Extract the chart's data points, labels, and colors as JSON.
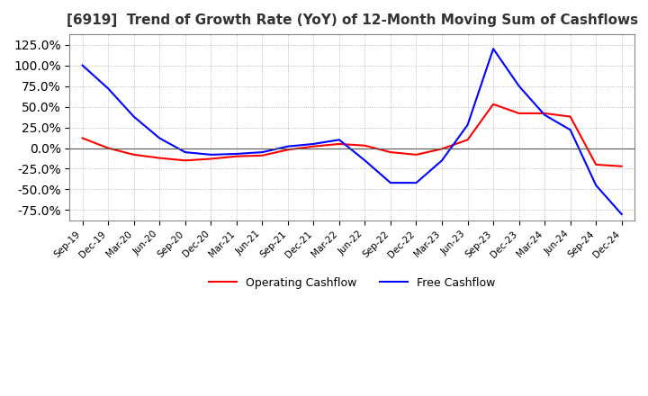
{
  "title": "[6919]  Trend of Growth Rate (YoY) of 12-Month Moving Sum of Cashflows",
  "title_fontsize": 11,
  "ylim": [
    -87.5,
    137.5
  ],
  "yticks": [
    -75,
    -50,
    -25,
    0,
    25,
    50,
    75,
    100,
    125
  ],
  "background_color": "#ffffff",
  "grid_color": "#aaaaaa",
  "x_labels": [
    "Sep-19",
    "Dec-19",
    "Mar-20",
    "Jun-20",
    "Sep-20",
    "Dec-20",
    "Mar-21",
    "Jun-21",
    "Sep-21",
    "Dec-21",
    "Mar-22",
    "Jun-22",
    "Sep-22",
    "Dec-22",
    "Mar-23",
    "Jun-23",
    "Sep-23",
    "Dec-23",
    "Mar-24",
    "Jun-24",
    "Sep-24",
    "Dec-24"
  ],
  "operating_cashflow": [
    12,
    0,
    -8,
    -12,
    -15,
    -13,
    -10,
    -9,
    -2,
    2,
    5,
    3,
    -5,
    -8,
    -1,
    10,
    53,
    42,
    42,
    38,
    -20,
    -22
  ],
  "free_cashflow": [
    100,
    72,
    38,
    12,
    -5,
    -8,
    -7,
    -5,
    2,
    5,
    10,
    -15,
    -42,
    -42,
    -15,
    28,
    120,
    75,
    40,
    22,
    -45,
    -80
  ],
  "op_color": "#ff0000",
  "free_color": "#0000ff",
  "line_width": 1.5
}
